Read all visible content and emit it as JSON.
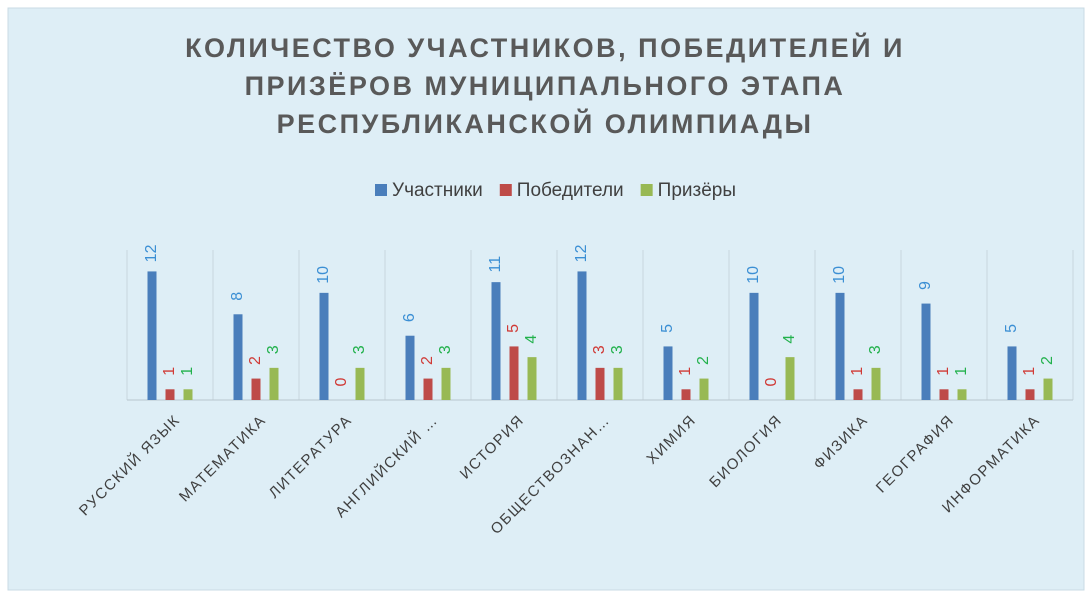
{
  "chart_data": {
    "type": "bar",
    "title": [
      "КОЛИЧЕСТВО УЧАСТНИКОВ, ПОБЕДИТЕЛЕЙ И",
      "ПРИЗЁРОВ МУНИЦИПАЛЬНОГО ЭТАПА",
      "РЕСПУБЛИКАНСКОЙ ОЛИМПИАДЫ"
    ],
    "categories": [
      "РУССКИЙ ЯЗЫК",
      "МАТЕМАТИКА",
      "ЛИТЕРАТУРА",
      "АНГЛИЙСКИЙ …",
      "ИСТОРИЯ",
      "ОБЩЕСТВОЗНАН…",
      "ХИМИЯ",
      "БИОЛОГИЯ",
      "ФИЗИКА",
      "ГЕОГРАФИЯ",
      "ИНФОРМАТИКА"
    ],
    "series": [
      {
        "name": "Участники",
        "color": "#4a7ebb",
        "label_color": "#3b8fd4",
        "values": [
          12,
          8,
          10,
          6,
          11,
          12,
          5,
          10,
          10,
          9,
          5
        ]
      },
      {
        "name": "Победители",
        "color": "#be4b48",
        "label_color": "#d03a36",
        "values": [
          1,
          2,
          0,
          2,
          5,
          3,
          1,
          0,
          1,
          1,
          1
        ]
      },
      {
        "name": "Призёры",
        "color": "#98b954",
        "label_color": "#22b14c",
        "values": [
          1,
          3,
          3,
          3,
          4,
          3,
          2,
          4,
          3,
          1,
          2
        ]
      }
    ],
    "ylim": [
      0,
      14
    ],
    "legend": "top"
  }
}
